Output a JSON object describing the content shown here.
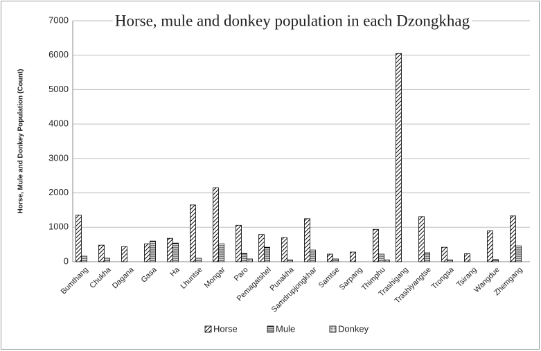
{
  "chart_data": {
    "type": "bar",
    "title": "Horse, mule and donkey population in each Dzongkhag",
    "y_label": "Horse, Mule and Donkey Population (Count)",
    "categories": [
      "Bumthang",
      "Chukha",
      "Dagana",
      "Gasa",
      "Ha",
      "Lhuntse",
      "Mongar",
      "Paro",
      "Pemagatshel",
      "Punakha",
      "Samdrupjongkhar",
      "Samtse",
      "Sarpang",
      "Thimphu",
      "Trashigang",
      "Trashiyangtse",
      "Trongsa",
      "Tsirang",
      "Wangdue",
      "Zhemgang"
    ],
    "series": [
      {
        "name": "Horse",
        "color": "#000000",
        "pattern": "diagonal",
        "values": [
          1350,
          480,
          440,
          520,
          680,
          1650,
          2150,
          1060,
          790,
          700,
          1250,
          220,
          280,
          940,
          6050,
          1310,
          420,
          230,
          900,
          1330
        ]
      },
      {
        "name": "Mule",
        "color": "#000000",
        "pattern": "horizontal",
        "values": [
          160,
          100,
          0,
          600,
          540,
          100,
          520,
          240,
          420,
          50,
          340,
          80,
          0,
          220,
          0,
          260,
          50,
          0,
          60,
          460
        ]
      },
      {
        "name": "Donkey",
        "color": "#000000",
        "pattern": "dots",
        "values": [
          0,
          0,
          0,
          0,
          0,
          0,
          0,
          80,
          0,
          0,
          0,
          0,
          0,
          50,
          0,
          0,
          0,
          0,
          0,
          0
        ]
      }
    ],
    "ylim": [
      0,
      7000
    ],
    "yticks": [
      0,
      1000,
      2000,
      3000,
      4000,
      5000,
      6000,
      7000
    ],
    "grid": true,
    "legend": "bottom"
  }
}
